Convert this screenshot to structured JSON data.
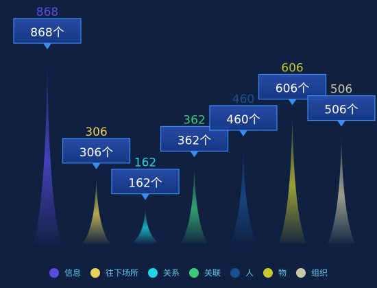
{
  "chart_data": {
    "type": "bar",
    "categories": [
      "信息",
      "往下场所",
      "关系",
      "关联",
      "人",
      "物",
      "组织"
    ],
    "values": [
      868,
      306,
      162,
      362,
      460,
      606,
      506
    ],
    "colors": [
      "#5a4be0",
      "#e8d25a",
      "#21d4e6",
      "#3ec97a",
      "#1a4f92",
      "#c8c830",
      "#c8c8a8"
    ],
    "top_labels": [
      "868",
      "306",
      "162",
      "362",
      "460",
      "606",
      "506"
    ],
    "box_labels": [
      "868个",
      "306个",
      "162个",
      "362个",
      "460个",
      "606个",
      "506个"
    ],
    "legend_placement": "bottom",
    "grid": false
  }
}
